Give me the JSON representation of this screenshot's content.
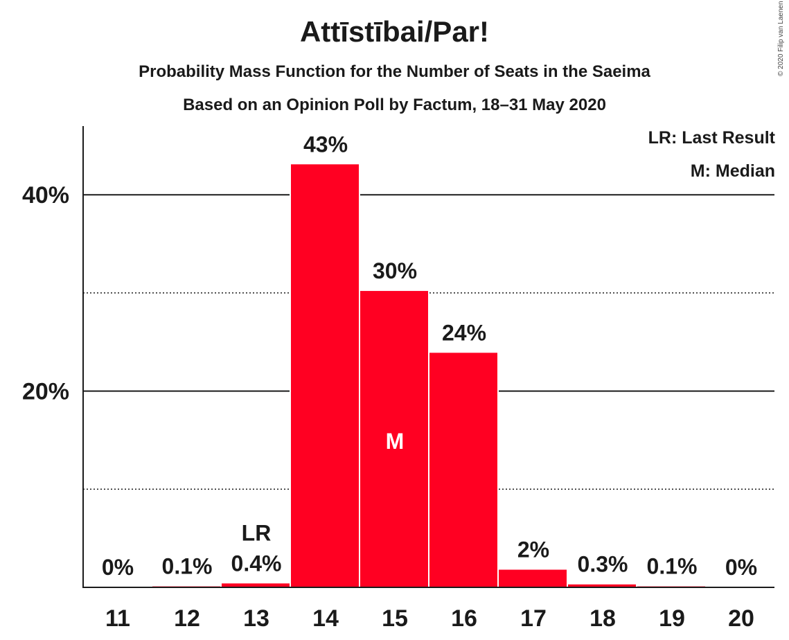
{
  "chart_data": {
    "type": "bar",
    "title": "Attīstībai/Par!",
    "subtitle": "Probability Mass Function for the Number of Seats in the Saeima",
    "subtitle2": "Based on an Opinion Poll by Factum, 18–31 May 2020",
    "categories": [
      "11",
      "12",
      "13",
      "14",
      "15",
      "16",
      "17",
      "18",
      "19",
      "20"
    ],
    "values": [
      0,
      0.1,
      0.4,
      43,
      30,
      24,
      2,
      0.3,
      0.1,
      0
    ],
    "plot_values": [
      0,
      0.1,
      0.4,
      43.1,
      30.2,
      23.9,
      1.8,
      0.3,
      0.1,
      0
    ],
    "data_labels": [
      "0%",
      "0.1%",
      "0.4%",
      "43%",
      "30%",
      "24%",
      "2%",
      "0.3%",
      "0.1%",
      "0%"
    ],
    "ylim": [
      0,
      47
    ],
    "yticks": [
      {
        "value": 20,
        "label": "20%"
      },
      {
        "value": 40,
        "label": "40%"
      }
    ],
    "minor_gridlines": [
      10,
      30
    ],
    "last_result": {
      "category": "13",
      "label": "LR"
    },
    "median": {
      "category": "15",
      "label": "M"
    },
    "legend": [
      "LR: Last Result",
      "M: Median"
    ],
    "bar_color": "#ff0022",
    "copyright": "© 2020 Filip van Laenen"
  }
}
